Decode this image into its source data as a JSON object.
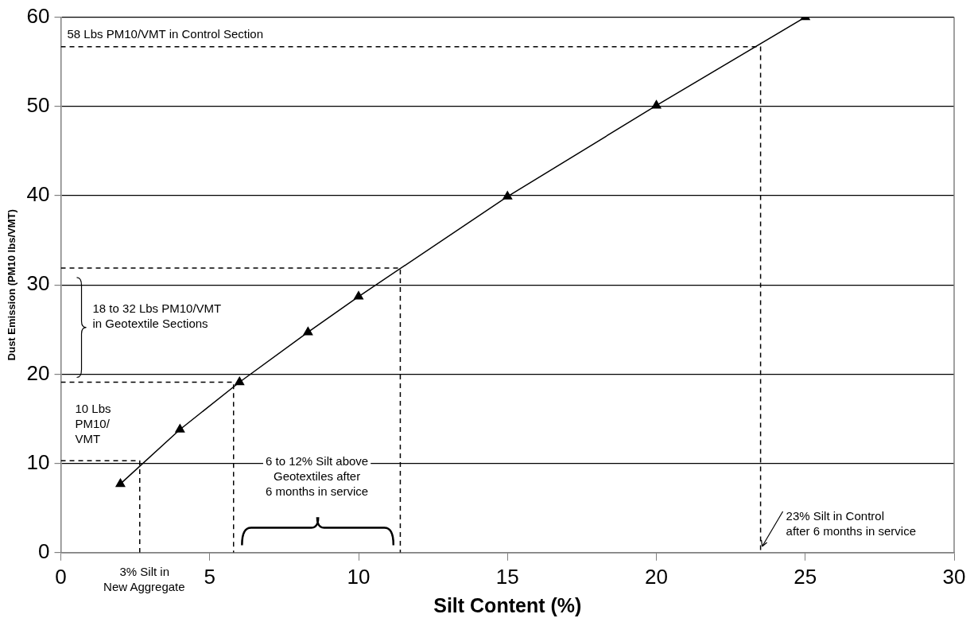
{
  "chart_data": {
    "type": "line",
    "xlabel": "Silt Content (%)",
    "ylabel": "Dust Emission (PM10 lbs/VMT)",
    "xlim": [
      0,
      30
    ],
    "xticks": [
      0,
      5,
      10,
      15,
      20,
      25,
      30
    ],
    "ylim": [
      0,
      60
    ],
    "yticks": [
      0,
      10,
      20,
      30,
      40,
      50,
      60
    ],
    "grid": "y",
    "legend": false,
    "marker": "triangle",
    "line_style": "solid",
    "series": [
      {
        "color": "#000000",
        "x": [
          2,
          4,
          6,
          8.3,
          10,
          15,
          20,
          25
        ],
        "values": [
          7.7,
          13.8,
          19.1,
          24.7,
          28.7,
          39.9,
          50.1,
          60
        ]
      },
      {
        "color": "#000000",
        "marker": "none",
        "line_style": "dashed",
        "x": [
          0,
          23.5,
          23.5
        ],
        "values": [
          56.7,
          56.7,
          0
        ]
      },
      {
        "color": "#000000",
        "marker": "none",
        "line_style": "dashed",
        "x": [
          0,
          11.4,
          11.4
        ],
        "values": [
          31.9,
          31.9,
          0
        ]
      },
      {
        "color": "#000000",
        "marker": "none",
        "line_style": "dashed",
        "x": [
          0,
          5.8,
          5.8
        ],
        "values": [
          19.1,
          19.1,
          0
        ]
      },
      {
        "color": "#000000",
        "marker": "none",
        "line_style": "dashed",
        "x": [
          0,
          2.65,
          2.65
        ],
        "values": [
          10.3,
          10.3,
          0
        ]
      }
    ],
    "annotations": [
      "58 Lbs PM10/VMT in Control Section",
      "18 to 32 Lbs PM10/VMT\nin Geotextile Sections",
      "10 Lbs\nPM10/\nVMT",
      "6 to 12% Silt above\nGeotextiles after\n6 months in service",
      "3% Silt in\nNew Aggregate",
      {
        "text": "23% Silt in Control\nafter 6 months in service",
        "x": 23.5,
        "y": 0.7
      }
    ]
  }
}
